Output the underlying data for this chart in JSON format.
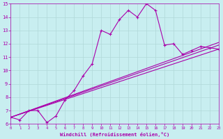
{
  "xlabel": "Windchill (Refroidissement éolien,°C)",
  "xlim": [
    0,
    23
  ],
  "ylim": [
    6,
    15
  ],
  "yticks": [
    6,
    7,
    8,
    9,
    10,
    11,
    12,
    13,
    14,
    15
  ],
  "xticks": [
    0,
    1,
    2,
    3,
    4,
    5,
    6,
    7,
    8,
    9,
    10,
    11,
    12,
    13,
    14,
    15,
    16,
    17,
    18,
    19,
    20,
    21,
    22,
    23
  ],
  "bg_color": "#c8eef0",
  "grid_color": "#b0d8d8",
  "line_color": "#aa00aa",
  "line1_x": [
    0,
    1,
    2,
    3,
    4,
    5,
    6,
    7,
    8,
    9,
    10,
    11,
    12,
    13,
    14,
    15,
    16,
    17,
    18,
    19,
    20,
    21,
    22,
    23
  ],
  "line1_y": [
    6.5,
    6.3,
    7.0,
    7.0,
    6.1,
    6.6,
    7.8,
    8.5,
    9.6,
    10.5,
    13.0,
    12.7,
    13.8,
    14.5,
    14.0,
    15.0,
    14.5,
    11.9,
    12.0,
    11.2,
    11.5,
    11.8,
    11.7,
    11.6
  ],
  "line2_x": [
    0,
    23
  ],
  "line2_y": [
    6.5,
    11.6
  ],
  "line3_x": [
    0,
    23
  ],
  "line3_y": [
    6.5,
    11.9
  ],
  "line4_x": [
    0,
    23
  ],
  "line4_y": [
    6.5,
    12.1
  ]
}
